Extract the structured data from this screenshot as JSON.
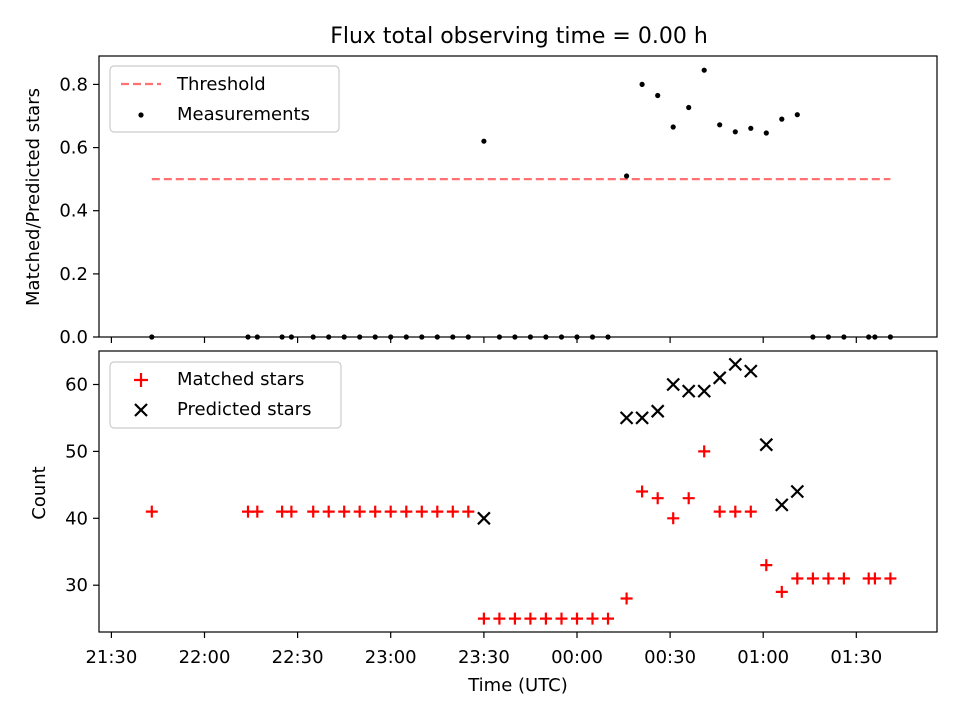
{
  "chart_data": [
    {
      "type": "scatter",
      "title": "Flux total observing time = 0.00 h",
      "xlabel": "",
      "ylabel": "Matched/Predicted stars",
      "xlim": [
        "21:26",
        "01:56"
      ],
      "ylim": [
        0,
        0.89
      ],
      "yticks": [
        "0.0",
        "0.2",
        "0.4",
        "0.6",
        "0.8"
      ],
      "legend": "top-left",
      "grid": false,
      "threshold": {
        "name": "Threshold",
        "value": 0.5,
        "x_start": "21:43",
        "x_end": "01:41",
        "color": "#ff7070",
        "style": "dashed"
      },
      "series": [
        {
          "name": "Measurements",
          "color": "#000000",
          "marker": "dot",
          "points": [
            [
              "21:43",
              0.0
            ],
            [
              "22:14",
              0.0
            ],
            [
              "22:17",
              0.0
            ],
            [
              "22:25",
              0.0
            ],
            [
              "22:28",
              0.0
            ],
            [
              "22:35",
              0.0
            ],
            [
              "22:40",
              0.0
            ],
            [
              "22:45",
              0.0
            ],
            [
              "22:50",
              0.0
            ],
            [
              "22:55",
              0.0
            ],
            [
              "23:00",
              0.0
            ],
            [
              "23:05",
              0.0
            ],
            [
              "23:10",
              0.0
            ],
            [
              "23:15",
              0.0
            ],
            [
              "23:20",
              0.0
            ],
            [
              "23:25",
              0.0
            ],
            [
              "23:30",
              0.62
            ],
            [
              "23:35",
              0.0
            ],
            [
              "23:40",
              0.0
            ],
            [
              "23:45",
              0.0
            ],
            [
              "23:50",
              0.0
            ],
            [
              "23:55",
              0.0
            ],
            [
              "00:00",
              0.0
            ],
            [
              "00:05",
              0.0
            ],
            [
              "00:10",
              0.0
            ],
            [
              "00:16",
              0.51
            ],
            [
              "00:21",
              0.8
            ],
            [
              "00:26",
              0.765
            ],
            [
              "00:31",
              0.665
            ],
            [
              "00:36",
              0.727
            ],
            [
              "00:41",
              0.845
            ],
            [
              "00:46",
              0.672
            ],
            [
              "00:51",
              0.65
            ],
            [
              "00:56",
              0.661
            ],
            [
              "01:01",
              0.646
            ],
            [
              "01:06",
              0.69
            ],
            [
              "01:11",
              0.704
            ],
            [
              "01:16",
              0.0
            ],
            [
              "01:21",
              0.0
            ],
            [
              "01:26",
              0.0
            ],
            [
              "01:34",
              0.0
            ],
            [
              "01:36",
              0.0
            ],
            [
              "01:41",
              0.0
            ]
          ]
        }
      ]
    },
    {
      "type": "scatter",
      "title": "",
      "xlabel": "Time (UTC)",
      "ylabel": "Count",
      "xlim": [
        "21:26",
        "01:56"
      ],
      "ylim": [
        23,
        65
      ],
      "xticks": [
        "21:30",
        "22:00",
        "22:30",
        "23:00",
        "23:30",
        "00:00",
        "00:30",
        "01:00",
        "01:30"
      ],
      "yticks": [
        "30",
        "40",
        "50",
        "60"
      ],
      "legend": "top-left",
      "grid": false,
      "series": [
        {
          "name": "Matched stars",
          "color": "#ff0000",
          "marker": "plus",
          "points": [
            [
              "21:43",
              41
            ],
            [
              "22:14",
              41
            ],
            [
              "22:17",
              41
            ],
            [
              "22:25",
              41
            ],
            [
              "22:28",
              41
            ],
            [
              "22:35",
              41
            ],
            [
              "22:40",
              41
            ],
            [
              "22:45",
              41
            ],
            [
              "22:50",
              41
            ],
            [
              "22:55",
              41
            ],
            [
              "23:00",
              41
            ],
            [
              "23:05",
              41
            ],
            [
              "23:10",
              41
            ],
            [
              "23:15",
              41
            ],
            [
              "23:20",
              41
            ],
            [
              "23:25",
              41
            ],
            [
              "23:30",
              25
            ],
            [
              "23:35",
              25
            ],
            [
              "23:40",
              25
            ],
            [
              "23:45",
              25
            ],
            [
              "23:50",
              25
            ],
            [
              "23:55",
              25
            ],
            [
              "00:00",
              25
            ],
            [
              "00:05",
              25
            ],
            [
              "00:10",
              25
            ],
            [
              "00:16",
              28
            ],
            [
              "00:21",
              44
            ],
            [
              "00:26",
              43
            ],
            [
              "00:31",
              40
            ],
            [
              "00:36",
              43
            ],
            [
              "00:41",
              50
            ],
            [
              "00:46",
              41
            ],
            [
              "00:51",
              41
            ],
            [
              "00:56",
              41
            ],
            [
              "01:01",
              33
            ],
            [
              "01:06",
              29
            ],
            [
              "01:11",
              31
            ],
            [
              "01:16",
              31
            ],
            [
              "01:21",
              31
            ],
            [
              "01:26",
              31
            ],
            [
              "01:34",
              31
            ],
            [
              "01:36",
              31
            ],
            [
              "01:41",
              31
            ]
          ]
        },
        {
          "name": "Predicted stars",
          "color": "#000000",
          "marker": "x",
          "points": [
            [
              "23:30",
              40
            ],
            [
              "00:16",
              55
            ],
            [
              "00:21",
              55
            ],
            [
              "00:26",
              56
            ],
            [
              "00:31",
              60
            ],
            [
              "00:36",
              59
            ],
            [
              "00:41",
              59
            ],
            [
              "00:46",
              61
            ],
            [
              "00:51",
              63
            ],
            [
              "00:56",
              62
            ],
            [
              "01:01",
              51
            ],
            [
              "01:06",
              42
            ],
            [
              "01:11",
              44
            ]
          ]
        }
      ]
    }
  ]
}
